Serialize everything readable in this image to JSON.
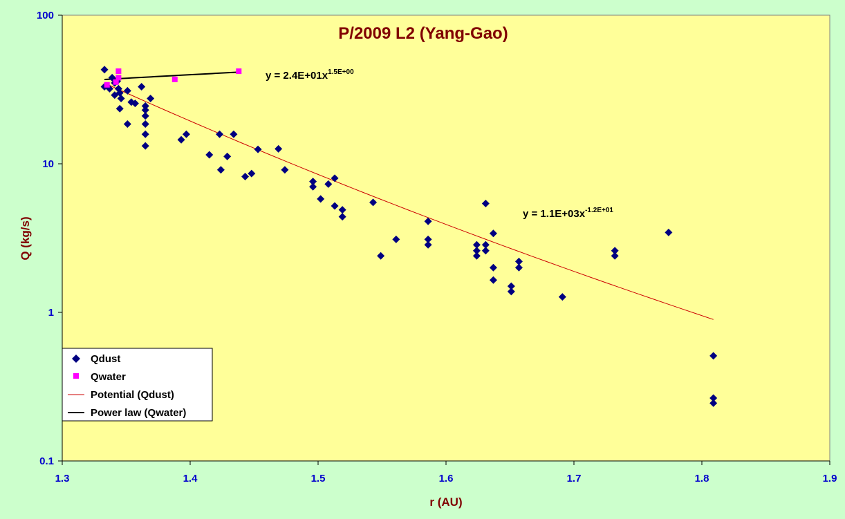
{
  "chart_data": {
    "type": "scatter",
    "title": "P/2009 L2 (Yang-Gao)",
    "xlabel": "r (AU)",
    "ylabel": "Q (kg/s)",
    "xlim": [
      1.3,
      1.9
    ],
    "ylim": [
      0.1,
      100
    ],
    "yscale": "log",
    "x_ticks": [
      "1.3",
      "1.4",
      "1.5",
      "1.6",
      "1.7",
      "1.8",
      "1.9"
    ],
    "y_ticks": [
      "0.1",
      "1",
      "10",
      "100"
    ],
    "grid": false,
    "legend_position": "bottom-left",
    "series": [
      {
        "name": "Qdust",
        "marker": "diamond",
        "color": "#000080",
        "points": [
          [
            1.333,
            43
          ],
          [
            1.333,
            33
          ],
          [
            1.337,
            32
          ],
          [
            1.339,
            38
          ],
          [
            1.341,
            35
          ],
          [
            1.343,
            36
          ],
          [
            1.341,
            29
          ],
          [
            1.344,
            32
          ],
          [
            1.345,
            30
          ],
          [
            1.346,
            27.5
          ],
          [
            1.345,
            23.5
          ],
          [
            1.351,
            31
          ],
          [
            1.351,
            18.5
          ],
          [
            1.354,
            26
          ],
          [
            1.357,
            25.5
          ],
          [
            1.362,
            33
          ],
          [
            1.365,
            24.5
          ],
          [
            1.365,
            23
          ],
          [
            1.365,
            21
          ],
          [
            1.365,
            18.5
          ],
          [
            1.365,
            15.8
          ],
          [
            1.365,
            13.2
          ],
          [
            1.369,
            27.5
          ],
          [
            1.393,
            14.5
          ],
          [
            1.397,
            15.8
          ],
          [
            1.415,
            11.5
          ],
          [
            1.423,
            15.8
          ],
          [
            1.424,
            9.1
          ],
          [
            1.429,
            11.2
          ],
          [
            1.434,
            15.8
          ],
          [
            1.443,
            8.2
          ],
          [
            1.448,
            8.6
          ],
          [
            1.453,
            12.5
          ],
          [
            1.469,
            12.6
          ],
          [
            1.474,
            9.1
          ],
          [
            1.496,
            7.6
          ],
          [
            1.496,
            7.0
          ],
          [
            1.502,
            5.8
          ],
          [
            1.508,
            7.3
          ],
          [
            1.513,
            8.0
          ],
          [
            1.513,
            5.2
          ],
          [
            1.519,
            4.9
          ],
          [
            1.519,
            4.4
          ],
          [
            1.543,
            5.5
          ],
          [
            1.549,
            2.4
          ],
          [
            1.561,
            3.1
          ],
          [
            1.586,
            4.1
          ],
          [
            1.586,
            3.1
          ],
          [
            1.586,
            2.85
          ],
          [
            1.624,
            2.85
          ],
          [
            1.624,
            2.6
          ],
          [
            1.624,
            2.4
          ],
          [
            1.631,
            5.4
          ],
          [
            1.631,
            2.85
          ],
          [
            1.631,
            2.6
          ],
          [
            1.637,
            3.4
          ],
          [
            1.637,
            2.0
          ],
          [
            1.637,
            1.65
          ],
          [
            1.651,
            1.5
          ],
          [
            1.651,
            1.38
          ],
          [
            1.657,
            2.2
          ],
          [
            1.657,
            2.0
          ],
          [
            1.691,
            1.27
          ],
          [
            1.732,
            2.6
          ],
          [
            1.732,
            2.4
          ],
          [
            1.774,
            3.45
          ],
          [
            1.809,
            0.51
          ],
          [
            1.809,
            0.265
          ],
          [
            1.809,
            0.245
          ]
        ]
      },
      {
        "name": "Qwater",
        "marker": "square",
        "color": "#ff00ff",
        "points": [
          [
            1.335,
            34
          ],
          [
            1.342,
            35.5
          ],
          [
            1.344,
            42
          ],
          [
            1.344,
            38
          ],
          [
            1.388,
            37
          ],
          [
            1.438,
            42
          ]
        ]
      }
    ],
    "trendlines": [
      {
        "name": "Potential (Qdust)",
        "color": "#cc0000",
        "coef": 1100,
        "exponent": -12,
        "x_range": [
          1.333,
          1.809
        ],
        "equation_base": "y = 1.1E+03x",
        "equation_exp": "-1.2E+01"
      },
      {
        "name": "Power law (Qwater)",
        "color": "#000000",
        "coef": 24,
        "exponent": 1.5,
        "x_range": [
          1.333,
          1.438
        ],
        "equation_base": "y = 2.4E+01x",
        "equation_exp": "1.5E+00"
      }
    ]
  },
  "colors": {
    "page_background": "#ccffcc",
    "plot_background": "#ffff99"
  }
}
